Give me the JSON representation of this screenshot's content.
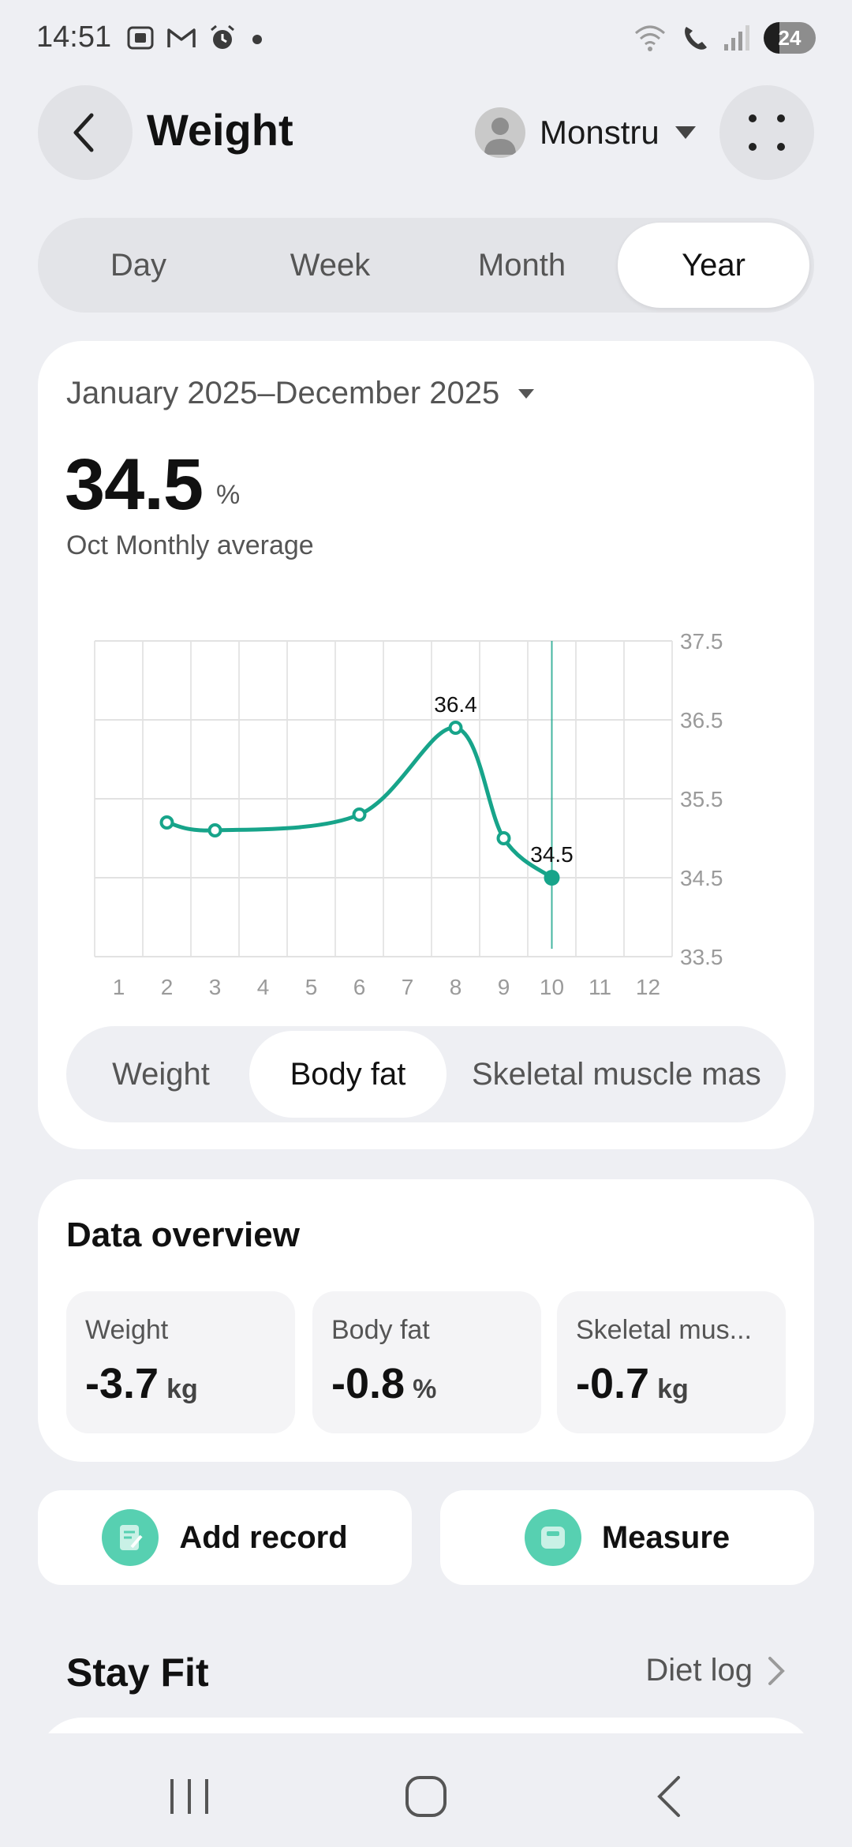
{
  "status_bar": {
    "time": "14:51",
    "battery": "24"
  },
  "header": {
    "title": "Weight",
    "profile_name": "Monstru"
  },
  "period_tabs": [
    {
      "label": "Day",
      "active": false
    },
    {
      "label": "Week",
      "active": false
    },
    {
      "label": "Month",
      "active": false
    },
    {
      "label": "Year",
      "active": true
    }
  ],
  "summary": {
    "date_range": "January 2025–December 2025",
    "value": "34.5",
    "unit": "%",
    "caption": "Oct Monthly average"
  },
  "chart_data": {
    "type": "line",
    "x": [
      2,
      3,
      6,
      8,
      9,
      10
    ],
    "values": [
      35.2,
      35.1,
      35.3,
      36.4,
      35.0,
      34.5
    ],
    "x_ticks": [
      "1",
      "2",
      "3",
      "4",
      "5",
      "6",
      "7",
      "8",
      "9",
      "10",
      "11",
      "12"
    ],
    "y_ticks": [
      "37.5",
      "36.5",
      "35.5",
      "34.5",
      "33.5"
    ],
    "xlim": [
      1,
      12
    ],
    "ylim": [
      33.5,
      37.5
    ],
    "data_labels": [
      {
        "x": 8,
        "value": "36.4"
      },
      {
        "x": 10,
        "value": "34.5"
      }
    ],
    "selected_x": 10,
    "grid": true,
    "line_color": "#17a48a",
    "title": "",
    "xlabel": "",
    "ylabel": ""
  },
  "metric_tabs": [
    {
      "label": "Weight",
      "active": false
    },
    {
      "label": "Body fat",
      "active": true
    },
    {
      "label": "Skeletal muscle mas",
      "active": false
    }
  ],
  "overview": {
    "title": "Data overview",
    "stats": [
      {
        "label": "Weight",
        "value": "-3.7",
        "unit": "kg"
      },
      {
        "label": "Body fat",
        "value": "-0.8",
        "unit": "%"
      },
      {
        "label": "Skeletal mus...",
        "value": "-0.7",
        "unit": "kg"
      }
    ]
  },
  "actions": {
    "add_record": "Add record",
    "measure": "Measure"
  },
  "stay_fit": {
    "title": "Stay Fit",
    "link": "Diet log"
  },
  "colors": {
    "accent": "#17a48a",
    "action_icon": "#57d0b1"
  },
  "icons": {
    "back": "back-arrow-icon",
    "more": "more-grid-icon",
    "dropdown": "caret-down-icon"
  }
}
